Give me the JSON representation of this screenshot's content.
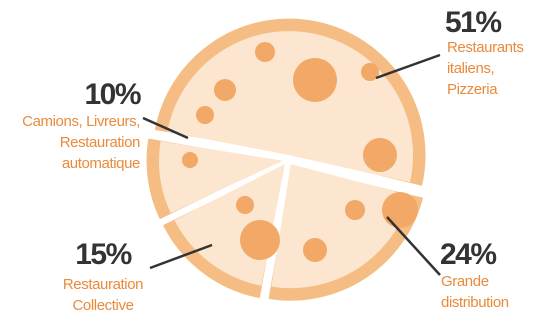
{
  "chart_data": {
    "type": "pie",
    "categories": [
      [
        "Restaurants",
        "italiens,",
        "Pizzeria"
      ],
      [
        "Grande",
        "distribution"
      ],
      [
        "Restauration",
        "Collective"
      ],
      [
        "Camions, Livreurs,",
        "Restauration",
        "automatique"
      ]
    ],
    "values": [
      51,
      24,
      15,
      10
    ],
    "value_labels": [
      "51%",
      "24%",
      "15%",
      "10%"
    ],
    "color": "#f5bd83"
  }
}
